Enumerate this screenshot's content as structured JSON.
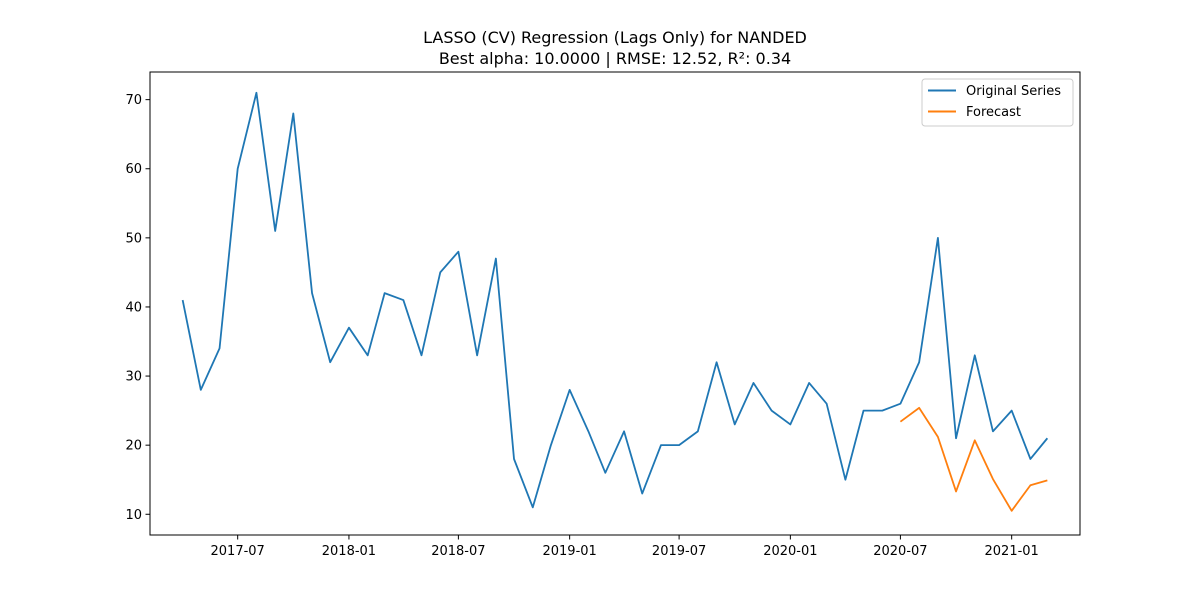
{
  "chart_data": {
    "type": "line",
    "title": "LASSO (CV) Regression (Lags Only) for NANDED",
    "subtitle": "Best alpha: 10.0000 | RMSE: 12.52, R²: 0.34",
    "xlabel": "",
    "ylabel": "",
    "xlim": [
      "2017-02-06",
      "2021-04-24"
    ],
    "ylim": [
      7.0,
      74.0
    ],
    "x_ticks": [
      "2017-07-01",
      "2018-01-01",
      "2018-07-01",
      "2019-01-01",
      "2019-07-01",
      "2020-01-01",
      "2020-07-01",
      "2021-01-01"
    ],
    "x_tick_labels": [
      "2017-07",
      "2018-01",
      "2018-07",
      "2019-01",
      "2019-07",
      "2020-01",
      "2020-07",
      "2021-01"
    ],
    "y_ticks": [
      10,
      20,
      30,
      40,
      50,
      60,
      70
    ],
    "y_tick_labels": [
      "10",
      "20",
      "30",
      "40",
      "50",
      "60",
      "70"
    ],
    "grid": false,
    "legend_position": "top-right",
    "series": [
      {
        "name": "Original Series",
        "color": "#1f77b4",
        "x": [
          "2017-04-01",
          "2017-05-01",
          "2017-06-01",
          "2017-07-01",
          "2017-08-01",
          "2017-09-01",
          "2017-10-01",
          "2017-11-01",
          "2017-12-01",
          "2018-01-01",
          "2018-02-01",
          "2018-03-01",
          "2018-04-01",
          "2018-05-01",
          "2018-06-01",
          "2018-07-01",
          "2018-08-01",
          "2018-09-01",
          "2018-10-01",
          "2018-11-01",
          "2018-12-01",
          "2019-01-01",
          "2019-02-01",
          "2019-03-01",
          "2019-04-01",
          "2019-05-01",
          "2019-06-01",
          "2019-07-01",
          "2019-08-01",
          "2019-09-01",
          "2019-10-01",
          "2019-11-01",
          "2019-12-01",
          "2020-01-01",
          "2020-02-01",
          "2020-03-01",
          "2020-04-01",
          "2020-05-01",
          "2020-06-01",
          "2020-07-01",
          "2020-08-01",
          "2020-09-01",
          "2020-10-01",
          "2020-11-01",
          "2020-12-01",
          "2021-01-01",
          "2021-02-01",
          "2021-03-01"
        ],
        "values": [
          41,
          28,
          34,
          60,
          71,
          51,
          68,
          42,
          32,
          37,
          33,
          42,
          41,
          33,
          45,
          48,
          33,
          47,
          18,
          11,
          20,
          28,
          22,
          16,
          22,
          13,
          20,
          20,
          22,
          32,
          23,
          29,
          25,
          23,
          29,
          26,
          15,
          25,
          25,
          26,
          32,
          50,
          21,
          33,
          22,
          25,
          18,
          21
        ]
      },
      {
        "name": "Forecast",
        "color": "#ff7f0e",
        "x": [
          "2020-07-01",
          "2020-08-01",
          "2020-09-01",
          "2020-10-01",
          "2020-11-01",
          "2020-12-01",
          "2021-01-01",
          "2021-02-01",
          "2021-03-01"
        ],
        "values": [
          23.4,
          25.4,
          21.2,
          13.3,
          20.7,
          15.1,
          10.5,
          14.2,
          14.9
        ]
      }
    ]
  }
}
